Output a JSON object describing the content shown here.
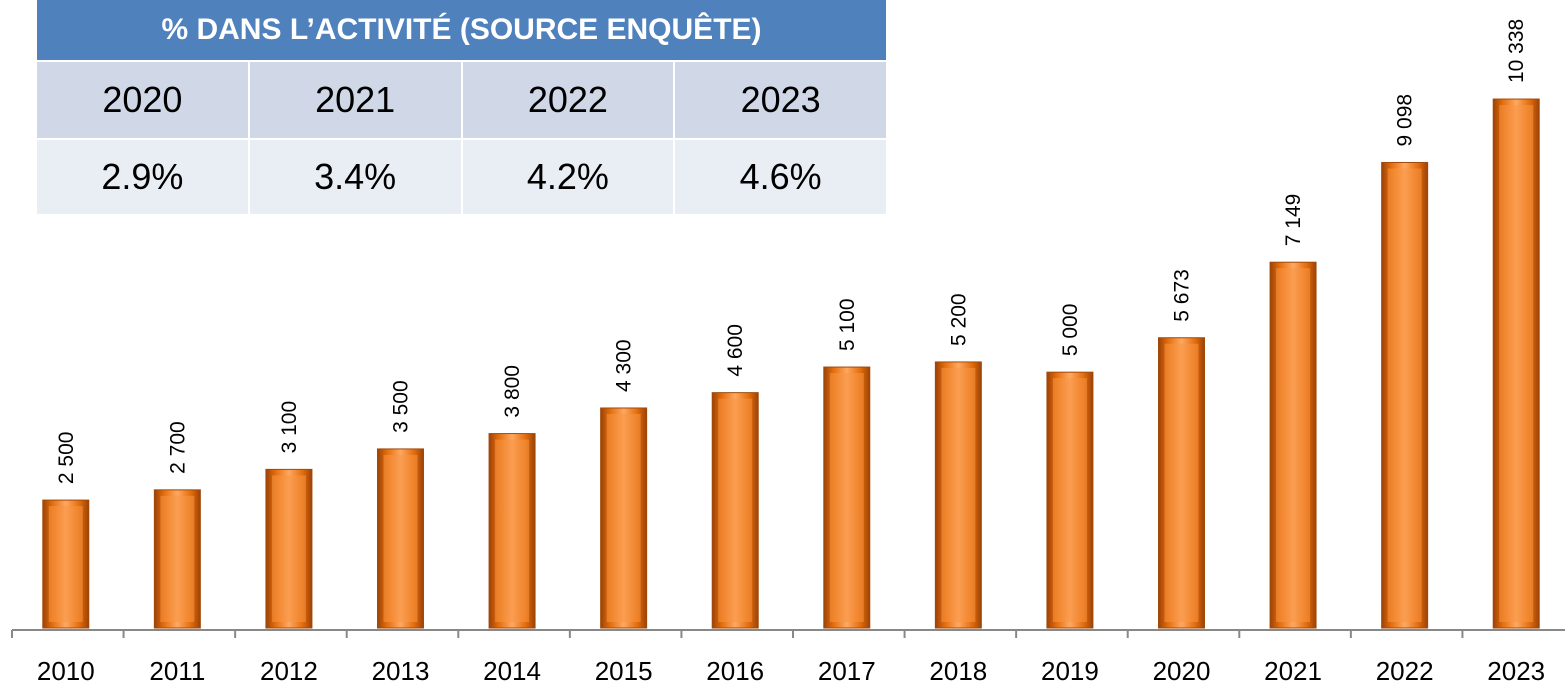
{
  "chart_data": {
    "type": "bar",
    "categories": [
      "2010",
      "2011",
      "2012",
      "2013",
      "2014",
      "2015",
      "2016",
      "2017",
      "2018",
      "2019",
      "2020",
      "2021",
      "2022",
      "2023"
    ],
    "values": [
      2500,
      2700,
      3100,
      3500,
      3800,
      4300,
      4600,
      5100,
      5200,
      5000,
      5673,
      7149,
      9098,
      10338
    ],
    "value_labels": [
      "2 500",
      "2 700",
      "3 100",
      "3 500",
      "3 800",
      "4 300",
      "4 600",
      "5 100",
      "5 200",
      "5 000",
      "5 673",
      "7 149",
      "9 098",
      "10 338"
    ],
    "color": "#f79646",
    "ylim": [
      0,
      12000
    ]
  },
  "table": {
    "header": "% DANS L’ACTIVITÉ (SOURCE ENQUÊTE)",
    "rows": [
      [
        "2020",
        "2021",
        "2022",
        "2023"
      ],
      [
        "2.9%",
        "3.4%",
        "4.2%",
        "4.6%"
      ]
    ]
  }
}
